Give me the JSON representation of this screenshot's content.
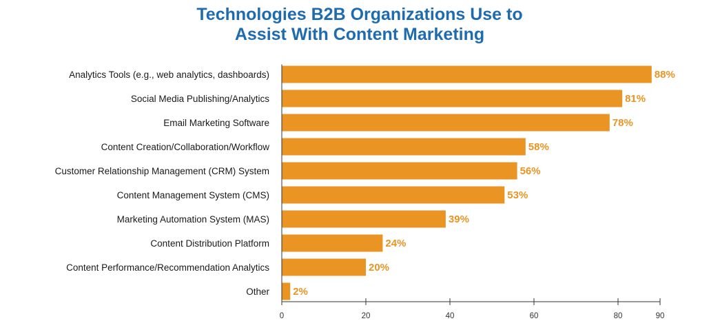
{
  "colors": {
    "title": "#1f6bb0",
    "bar": "#ea9423",
    "value_label": "#ea9423",
    "axis": "#333333"
  },
  "chart_data": {
    "type": "bar",
    "orientation": "horizontal",
    "title_lines": [
      "Technologies B2B Organizations Use to",
      "Assist With Content Marketing"
    ],
    "categories": [
      "Analytics Tools (e.g., web analytics, dashboards)",
      "Social Media Publishing/Analytics",
      "Email Marketing Software",
      "Content Creation/Collaboration/Workflow",
      "Customer Relationship Management (CRM) System",
      "Content Management System (CMS)",
      "Marketing Automation System (MAS)",
      "Content Distribution Platform",
      "Content Performance/Recommendation Analytics",
      "Other"
    ],
    "values": [
      88,
      81,
      78,
      58,
      56,
      53,
      39,
      24,
      20,
      2
    ],
    "value_labels": [
      "88%",
      "81%",
      "78%",
      "58%",
      "56%",
      "53%",
      "39%",
      "24%",
      "20%",
      "2%"
    ],
    "xlim": [
      0,
      90
    ],
    "xticks": [
      0,
      20,
      40,
      60,
      80,
      90
    ],
    "xtick_labels": [
      "0",
      "20",
      "40",
      "60",
      "80",
      "90"
    ],
    "xlabel": "",
    "ylabel": "",
    "grid": false,
    "legend": null
  }
}
